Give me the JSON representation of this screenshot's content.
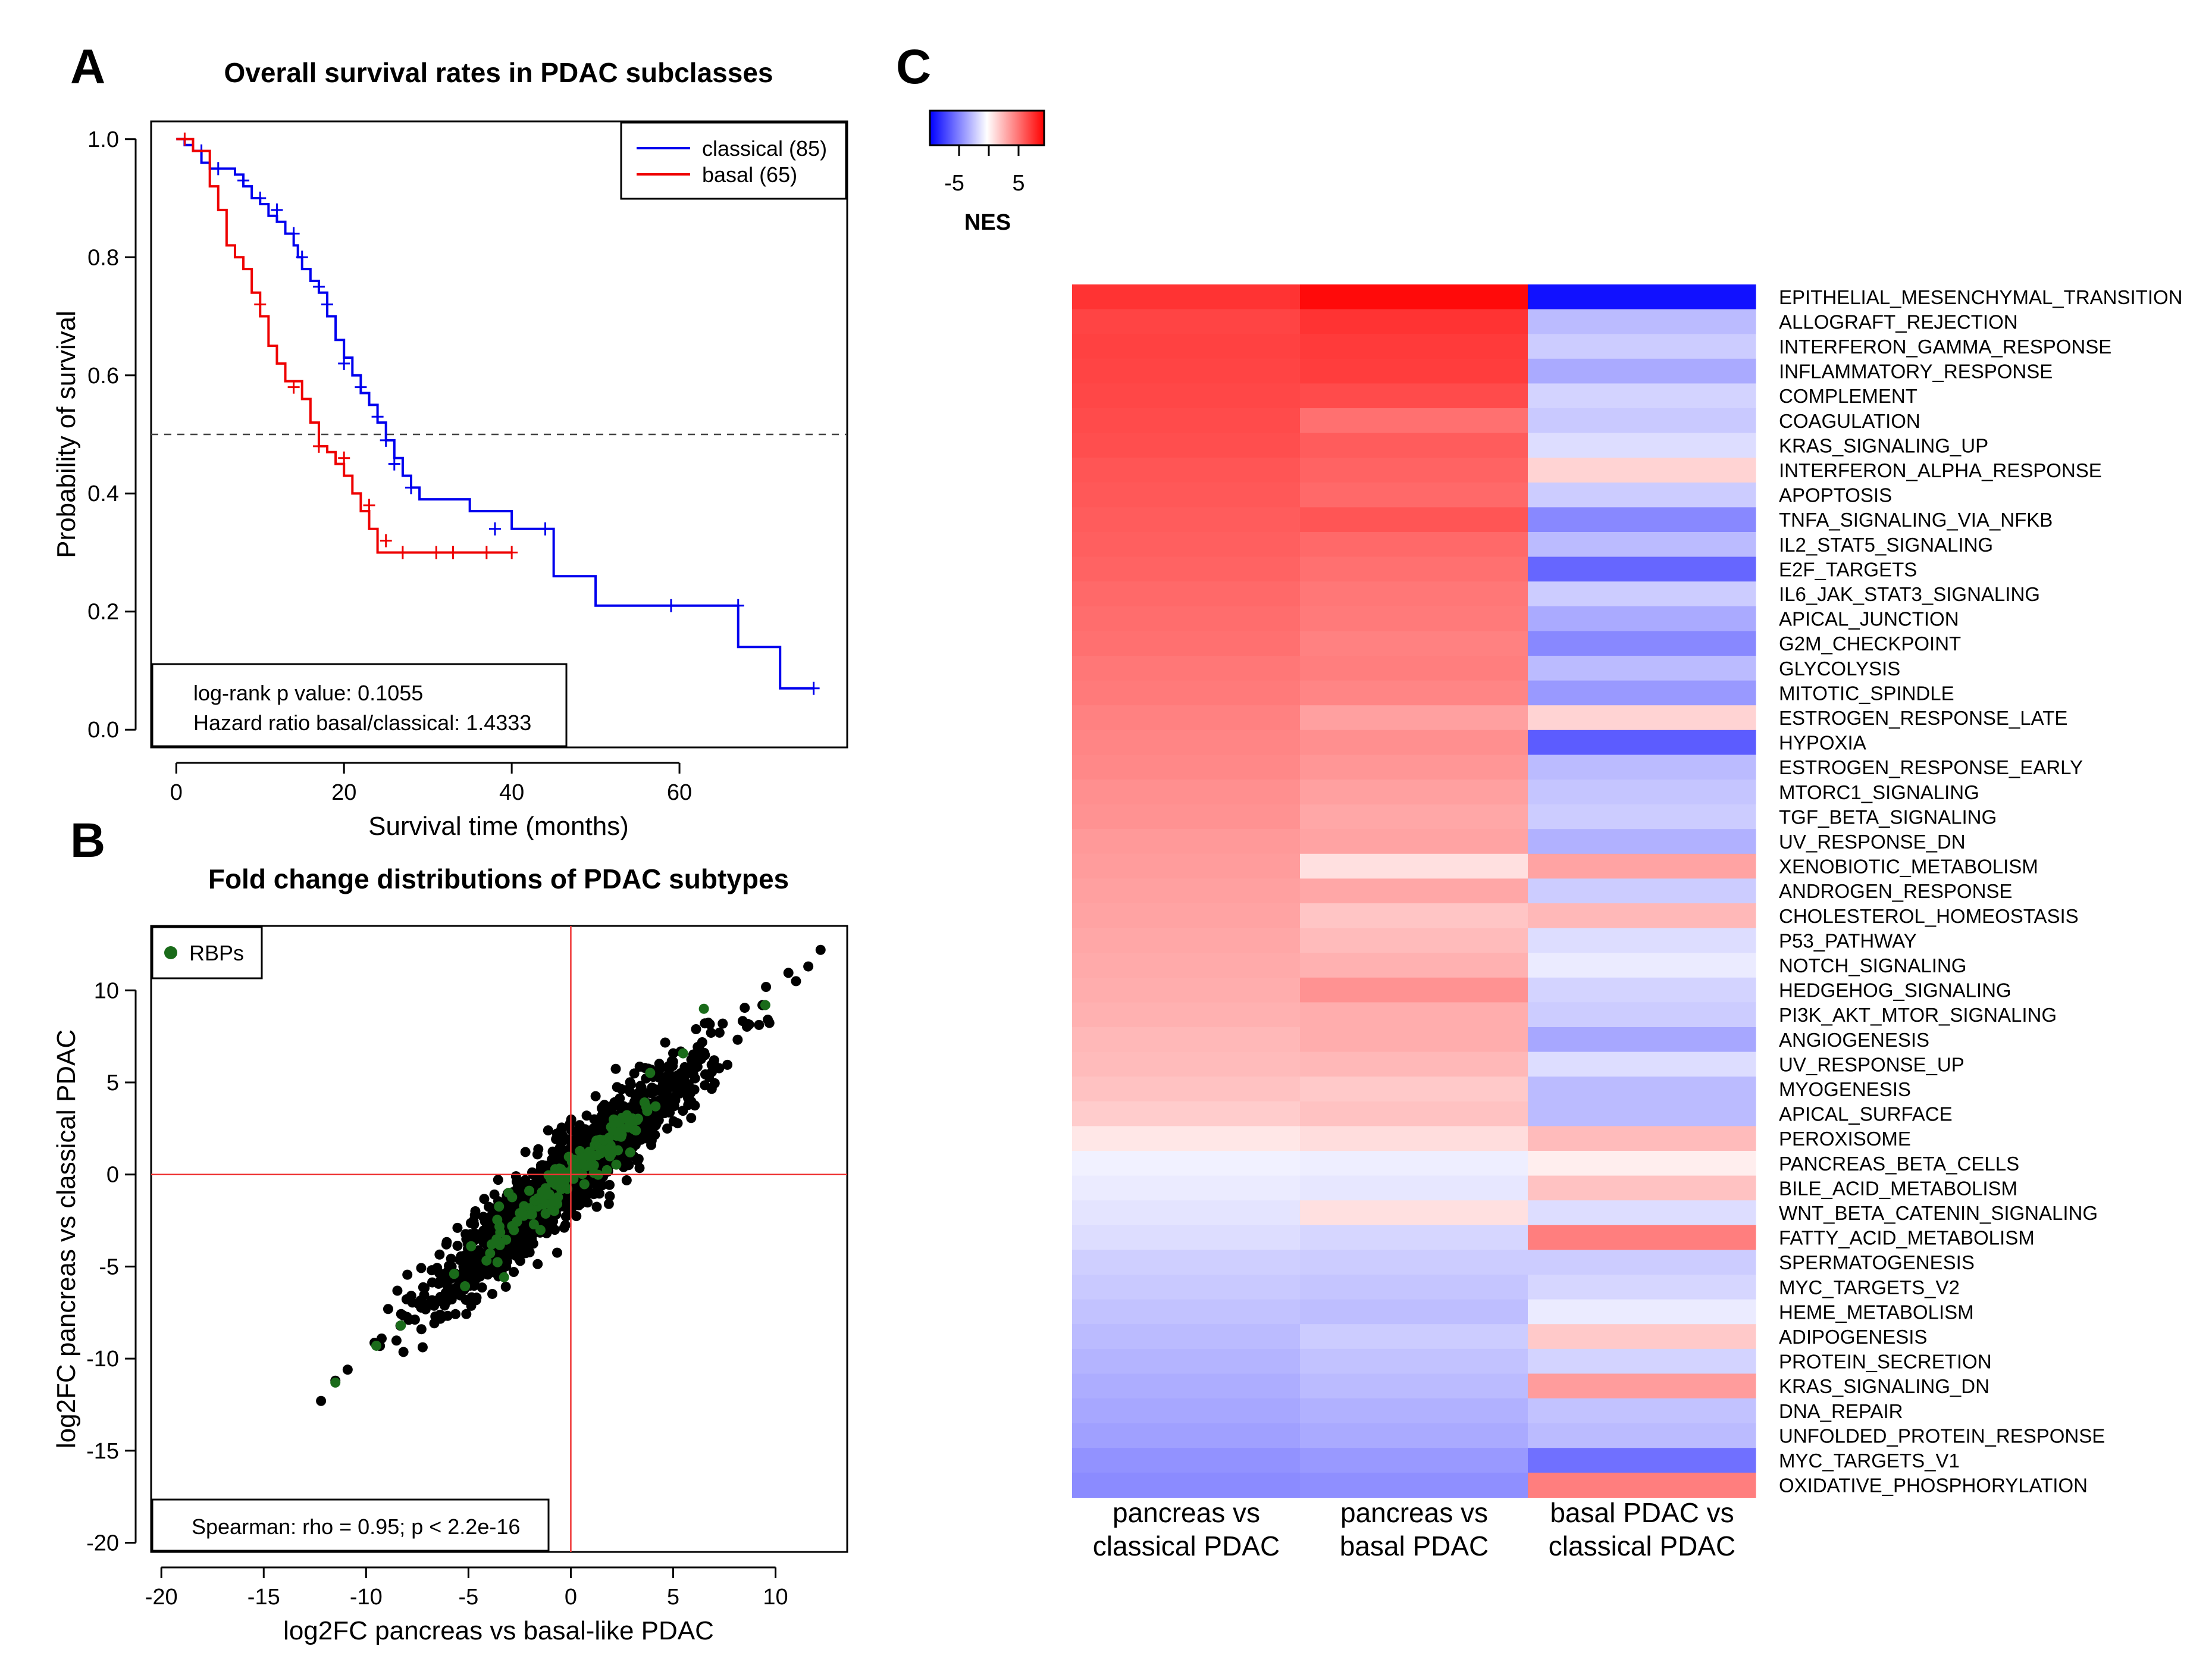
{
  "panel_a": {
    "letter": "A",
    "title": "Overall survival rates in PDAC subclasses",
    "xlabel": "Survival time (months)",
    "ylabel": "Probability of survival",
    "x_ticks": [
      "0",
      "20",
      "40",
      "60"
    ],
    "y_ticks": [
      "0.0",
      "0.2",
      "0.4",
      "0.6",
      "0.8",
      "1.0"
    ],
    "legend": [
      "classical (85)",
      "basal (65)"
    ],
    "stats_line1": "log-rank p value: 0.1055",
    "stats_line2": "Hazard ratio basal/classical: 1.4333",
    "colors": {
      "classical": "#0000ee",
      "basal": "#ee0000"
    }
  },
  "panel_b": {
    "letter": "B",
    "title": "Fold change distributions of PDAC subtypes",
    "xlabel": "log2FC pancreas vs basal-like PDAC",
    "ylabel": "log2FC pancreas vs classical PDAC",
    "x_ticks": [
      "-20",
      "-15",
      "-10",
      "-5",
      "0",
      "5",
      "10"
    ],
    "y_ticks": [
      "-20",
      "-15",
      "-10",
      "-5",
      "0",
      "5",
      "10"
    ],
    "legend": "RBPs",
    "stats": "Spearman: rho = 0.95; p < 2.2e-16",
    "colors": {
      "genes": "#000000",
      "rbps": "#1a6b1a",
      "ref_lines": "#ee3333"
    }
  },
  "panel_c": {
    "letter": "C",
    "colorbar_title": "NES",
    "colorbar_ticks": [
      "-5",
      "5"
    ],
    "columns": [
      [
        "pancreas vs",
        "classical PDAC"
      ],
      [
        "pancreas vs",
        "basal PDAC"
      ],
      [
        "basal PDAC vs",
        "classical PDAC"
      ]
    ],
    "colors": {
      "low": "#0000ff",
      "mid": "#ffffff",
      "high": "#ff0000"
    }
  },
  "chart_data": [
    {
      "type": "line",
      "title": "Overall survival rates in PDAC subclasses",
      "xlabel": "Survival time (months)",
      "ylabel": "Probability of survival",
      "xlim": [
        -3,
        80
      ],
      "ylim": [
        -0.03,
        1.03
      ],
      "reference_line_y": 0.5,
      "legend_position": "top-right",
      "series": [
        {
          "name": "classical (85)",
          "steps": [
            [
              0,
              1.0
            ],
            [
              1,
              0.99
            ],
            [
              2,
              0.98
            ],
            [
              3,
              0.96
            ],
            [
              4,
              0.95
            ],
            [
              7,
              0.94
            ],
            [
              8,
              0.92
            ],
            [
              9,
              0.9
            ],
            [
              10,
              0.89
            ],
            [
              11,
              0.87
            ],
            [
              12,
              0.86
            ],
            [
              13,
              0.84
            ],
            [
              14,
              0.82
            ],
            [
              14.5,
              0.8
            ],
            [
              15,
              0.78
            ],
            [
              16,
              0.76
            ],
            [
              17,
              0.74
            ],
            [
              18,
              0.7
            ],
            [
              19,
              0.66
            ],
            [
              20,
              0.63
            ],
            [
              21,
              0.6
            ],
            [
              22,
              0.57
            ],
            [
              23,
              0.55
            ],
            [
              24,
              0.52
            ],
            [
              25,
              0.49
            ],
            [
              26,
              0.46
            ],
            [
              27,
              0.43
            ],
            [
              28,
              0.41
            ],
            [
              29,
              0.39
            ],
            [
              35,
              0.37
            ],
            [
              40,
              0.34
            ],
            [
              45,
              0.26
            ],
            [
              50,
              0.21
            ],
            [
              67,
              0.14
            ],
            [
              72,
              0.07
            ],
            [
              76,
              0.07
            ]
          ],
          "censor_marks": [
            [
              3,
              0.98
            ],
            [
              5,
              0.95
            ],
            [
              8,
              0.93
            ],
            [
              10,
              0.9
            ],
            [
              12,
              0.88
            ],
            [
              14,
              0.84
            ],
            [
              15,
              0.8
            ],
            [
              17,
              0.75
            ],
            [
              18,
              0.72
            ],
            [
              20,
              0.62
            ],
            [
              22,
              0.58
            ],
            [
              24,
              0.53
            ],
            [
              25,
              0.49
            ],
            [
              26,
              0.45
            ],
            [
              28,
              0.41
            ],
            [
              38,
              0.34
            ],
            [
              44,
              0.34
            ],
            [
              59,
              0.21
            ],
            [
              67,
              0.21
            ],
            [
              76,
              0.07
            ]
          ]
        },
        {
          "name": "basal (65)",
          "steps": [
            [
              0,
              1.0
            ],
            [
              2,
              0.98
            ],
            [
              4,
              0.92
            ],
            [
              5,
              0.88
            ],
            [
              6,
              0.82
            ],
            [
              7,
              0.8
            ],
            [
              8,
              0.78
            ],
            [
              9,
              0.74
            ],
            [
              10,
              0.7
            ],
            [
              11,
              0.65
            ],
            [
              12,
              0.62
            ],
            [
              13,
              0.59
            ],
            [
              15,
              0.56
            ],
            [
              16,
              0.52
            ],
            [
              17,
              0.48
            ],
            [
              18,
              0.47
            ],
            [
              19,
              0.45
            ],
            [
              20,
              0.43
            ],
            [
              21,
              0.4
            ],
            [
              22,
              0.37
            ],
            [
              23,
              0.34
            ],
            [
              24,
              0.3
            ],
            [
              40,
              0.3
            ]
          ],
          "censor_marks": [
            [
              1,
              1.0
            ],
            [
              10,
              0.72
            ],
            [
              14,
              0.58
            ],
            [
              17,
              0.48
            ],
            [
              20,
              0.46
            ],
            [
              23,
              0.38
            ],
            [
              25,
              0.32
            ],
            [
              27,
              0.3
            ],
            [
              31,
              0.3
            ],
            [
              33,
              0.3
            ],
            [
              37,
              0.3
            ],
            [
              40,
              0.3
            ]
          ]
        }
      ],
      "stats": [
        "log-rank p value: 0.1055",
        "Hazard ratio basal/classical: 1.4333"
      ]
    },
    {
      "type": "scatter",
      "title": "Fold change distributions of PDAC subtypes",
      "xlabel": "log2FC pancreas vs basal-like PDAC",
      "ylabel": "log2FC pancreas vs classical PDAC",
      "xlim": [
        -20.5,
        13.5
      ],
      "ylim": [
        -20.5,
        13.5
      ],
      "reference_lines": {
        "x": 0,
        "y": 0
      },
      "legend_position": "top-left",
      "series": [
        {
          "name": "genes",
          "description": "approx. 1500 genes scattered along y ≈ 0.95·x, range about -12 to 12 on both axes"
        },
        {
          "name": "RBPs",
          "color": "#1a6b1a",
          "description": "approx. 150 RNA-binding proteins concentrated near the origin along the same diagonal"
        }
      ],
      "stats": "Spearman: rho = 0.95; p < 2.2e-16"
    },
    {
      "type": "heatmap",
      "colorbar": {
        "label": "NES",
        "range": [
          -7.5,
          7.5
        ],
        "ticks": [
          -5,
          5
        ],
        "colors": [
          "#0000ff",
          "#ffffff",
          "#ff0000"
        ]
      },
      "columns": [
        "pancreas vs classical PDAC",
        "pancreas vs basal PDAC",
        "basal PDAC vs classical PDAC"
      ],
      "rows": [
        "EPITHELIAL_MESENCHYMAL_TRANSITION",
        "ALLOGRAFT_REJECTION",
        "INTERFERON_GAMMA_RESPONSE",
        "INFLAMMATORY_RESPONSE",
        "COMPLEMENT",
        "COAGULATION",
        "KRAS_SIGNALING_UP",
        "INTERFERON_ALPHA_RESPONSE",
        "APOPTOSIS",
        "TNFA_SIGNALING_VIA_NFKB",
        "IL2_STAT5_SIGNALING",
        "E2F_TARGETS",
        "IL6_JAK_STAT3_SIGNALING",
        "APICAL_JUNCTION",
        "G2M_CHECKPOINT",
        "GLYCOLYSIS",
        "MITOTIC_SPINDLE",
        "ESTROGEN_RESPONSE_LATE",
        "HYPOXIA",
        "ESTROGEN_RESPONSE_EARLY",
        "MTORC1_SIGNALING",
        "TGF_BETA_SIGNALING",
        "UV_RESPONSE_DN",
        "XENOBIOTIC_METABOLISM",
        "ANDROGEN_RESPONSE",
        "CHOLESTEROL_HOMEOSTASIS",
        "P53_PATHWAY",
        "NOTCH_SIGNALING",
        "HEDGEHOG_SIGNALING",
        "PI3K_AKT_MTOR_SIGNALING",
        "ANGIOGENESIS",
        "UV_RESPONSE_UP",
        "MYOGENESIS",
        "APICAL_SURFACE",
        "PEROXISOME",
        "PANCREAS_BETA_CELLS",
        "BILE_ACID_METABOLISM",
        "WNT_BETA_CATENIN_SIGNALING",
        "FATTY_ACID_METABOLISM",
        "SPERMATOGENESIS",
        "MYC_TARGETS_V2",
        "HEME_METABOLISM",
        "ADIPOGENESIS",
        "PROTEIN_SECRETION",
        "KRAS_SIGNALING_DN",
        "DNA_REPAIR",
        "UNFOLDED_PROTEIN_RESPONSE",
        "MYC_TARGETS_V1",
        "OXIDATIVE_PHOSPHORYLATION"
      ],
      "values": [
        [
          6.0,
          7.2,
          -7.0
        ],
        [
          5.5,
          6.0,
          -2.0
        ],
        [
          5.6,
          5.8,
          -1.5
        ],
        [
          5.5,
          5.7,
          -2.5
        ],
        [
          5.4,
          5.3,
          -1.3
        ],
        [
          5.3,
          4.2,
          -1.6
        ],
        [
          5.2,
          4.8,
          -1.0
        ],
        [
          5.0,
          4.6,
          1.3
        ],
        [
          4.9,
          4.4,
          -1.5
        ],
        [
          4.8,
          5.0,
          -3.5
        ],
        [
          4.7,
          4.4,
          -2.0
        ],
        [
          4.6,
          4.2,
          -4.5
        ],
        [
          4.4,
          4.0,
          -1.5
        ],
        [
          4.3,
          3.9,
          -2.5
        ],
        [
          4.2,
          3.7,
          -3.5
        ],
        [
          4.0,
          3.8,
          -2.0
        ],
        [
          3.9,
          3.6,
          -3.0
        ],
        [
          3.7,
          2.8,
          1.3
        ],
        [
          3.6,
          3.3,
          -4.8
        ],
        [
          3.5,
          3.1,
          -2.0
        ],
        [
          3.3,
          2.8,
          -1.7
        ],
        [
          3.2,
          2.6,
          -1.5
        ],
        [
          3.0,
          2.7,
          -2.3
        ],
        [
          2.9,
          0.9,
          2.7
        ],
        [
          2.8,
          2.6,
          -1.5
        ],
        [
          2.7,
          1.7,
          2.1
        ],
        [
          2.6,
          2.0,
          -1.0
        ],
        [
          2.5,
          2.3,
          -0.6
        ],
        [
          2.4,
          3.2,
          -1.3
        ],
        [
          2.3,
          2.4,
          -1.5
        ],
        [
          2.1,
          2.4,
          -2.6
        ],
        [
          2.0,
          2.1,
          -1.0
        ],
        [
          1.8,
          1.6,
          -2.0
        ],
        [
          1.5,
          1.8,
          -2.0
        ],
        [
          0.7,
          1.0,
          2.0
        ],
        [
          -0.4,
          -0.5,
          0.5
        ],
        [
          -0.6,
          -0.7,
          1.8
        ],
        [
          -0.8,
          0.9,
          -1.0
        ],
        [
          -1.0,
          -1.2,
          3.8
        ],
        [
          -1.4,
          -1.5,
          -1.5
        ],
        [
          -1.6,
          -1.7,
          -1.2
        ],
        [
          -1.8,
          -1.9,
          -0.6
        ],
        [
          -2.0,
          -1.5,
          1.6
        ],
        [
          -2.2,
          -1.8,
          -1.3
        ],
        [
          -2.4,
          -2.0,
          2.9
        ],
        [
          -2.6,
          -2.3,
          -1.8
        ],
        [
          -2.8,
          -2.5,
          -2.0
        ],
        [
          -3.2,
          -3.0,
          -4.2
        ],
        [
          -3.4,
          -3.3,
          3.8
        ]
      ]
    }
  ]
}
